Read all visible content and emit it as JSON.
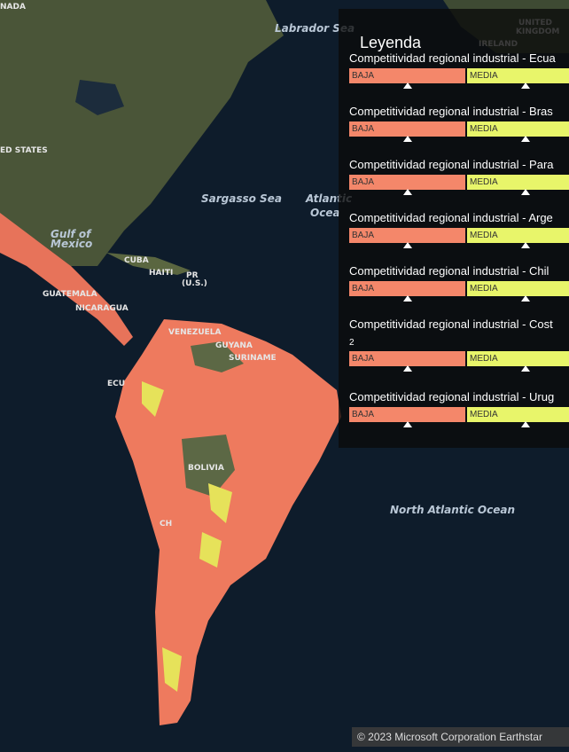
{
  "map": {
    "labels": [
      "NADA",
      "Labrador Sea",
      "UNITED",
      "KINGDOM",
      "IRELAND",
      "ED STATES",
      "Gulf of",
      "Mexico",
      "Sargasso Sea",
      "Atlantic",
      "Ocea",
      "CUBA",
      "HAITI",
      "PR",
      "(U.S.)",
      "GUATEMALA",
      "NICARAGUA",
      "VENEZUELA",
      "GUYANA",
      "SURINAME",
      "ECU",
      "BOLIVIA",
      "CH",
      "North Atlantic Ocean"
    ]
  },
  "legend": {
    "title": "Leyenda",
    "items": [
      {
        "title": "Competitividad regional industrial - Ecua",
        "low": "BAJA",
        "mid": "MEDIA"
      },
      {
        "title": "Competitividad regional industrial - Bras",
        "low": "BAJA",
        "mid": "MEDIA"
      },
      {
        "title": "Competitividad regional industrial - Para",
        "low": "BAJA",
        "mid": "MEDIA"
      },
      {
        "title": "Competitividad regional industrial - Arge",
        "low": "BAJA",
        "mid": "MEDIA"
      },
      {
        "title": "Competitividad regional industrial - Chil",
        "low": "BAJA",
        "mid": "MEDIA"
      },
      {
        "title": "Competitividad regional industrial - Cost",
        "note": "2",
        "low": "BAJA",
        "mid": "MEDIA"
      },
      {
        "title": "Competitividad regional industrial - Urug",
        "low": "BAJA",
        "mid": "MEDIA"
      }
    ]
  },
  "attribution": "© 2023 Microsoft Corporation Earthstar"
}
